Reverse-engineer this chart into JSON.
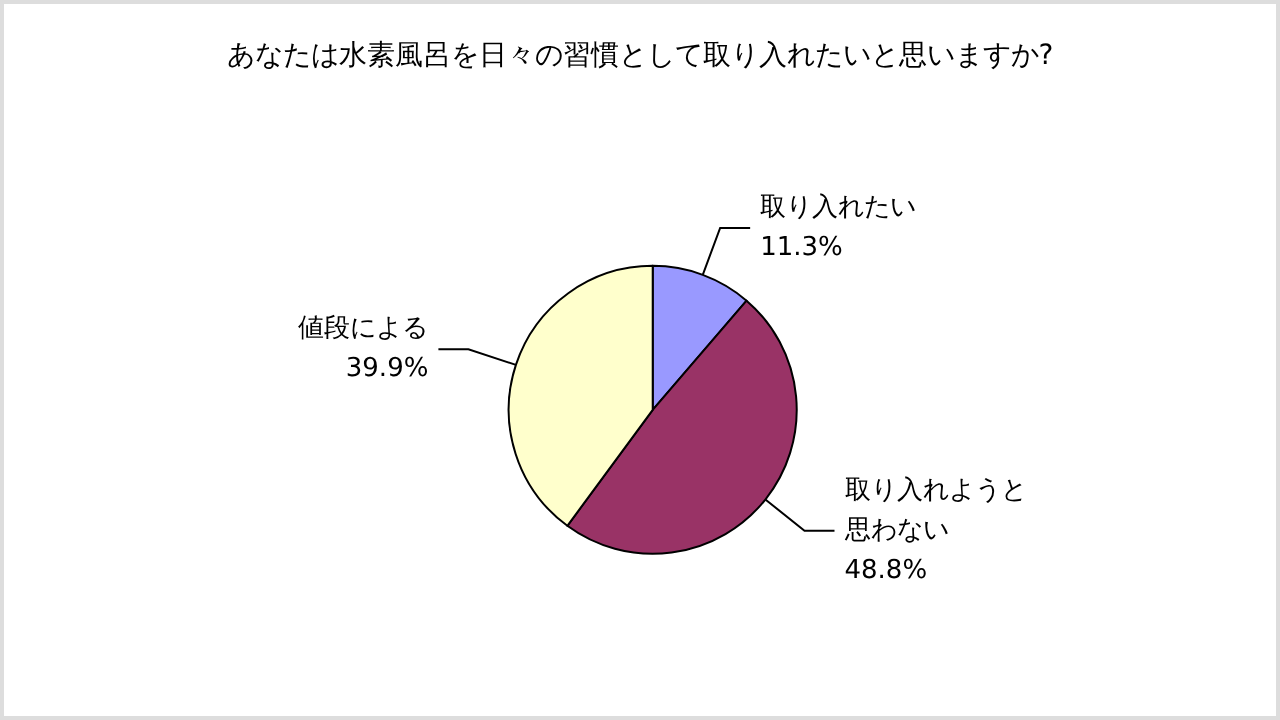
{
  "chart_data": {
    "type": "pie",
    "title": "あなたは水素風呂を日々の習慣として取り入れたいと思いますか?",
    "categories": [
      "取り入れたい",
      "取り入れようと思わない",
      "値段による"
    ],
    "values": [
      11.3,
      48.8,
      39.9
    ],
    "value_labels": [
      "11.3%",
      "48.8%",
      "39.9%"
    ],
    "colors": [
      "#9999ff",
      "#993366",
      "#ffffcc"
    ],
    "legend": false
  }
}
